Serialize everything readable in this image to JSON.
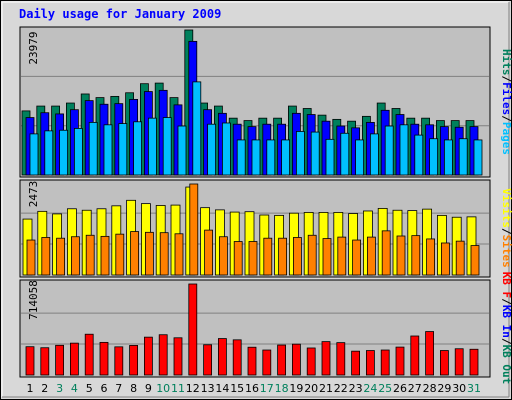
{
  "title": "Daily usage for January 2009",
  "colors": {
    "hits": "#00805c",
    "files": "#0000ff",
    "pages": "#00c0ff",
    "visits": "#ffff00",
    "sites": "#ff8000",
    "kbytes": "#ff0000",
    "kb_in": "#0000ff",
    "kb_out": "#00805c",
    "weekend_day": "#00805c",
    "weekday": "#000000",
    "title_text": "#0000ff",
    "panel_bg": "#c0c0c0",
    "background": "#d8d8d8"
  },
  "chart_data": [
    {
      "type": "bar",
      "panel": "hits-files-pages",
      "y_max_label": "23979",
      "ylim": [
        0,
        23979
      ],
      "legend": [
        {
          "label": "Hits",
          "color": "#00805c"
        },
        {
          "label": "/",
          "color": "#000000"
        },
        {
          "label": "Files",
          "color": "#0000ff"
        },
        {
          "label": "/",
          "color": "#000000"
        },
        {
          "label": "Pages",
          "color": "#00c0ff"
        }
      ],
      "categories": [
        "1",
        "2",
        "3",
        "4",
        "5",
        "6",
        "7",
        "8",
        "9",
        "10",
        "11",
        "12",
        "13",
        "14",
        "15",
        "16",
        "17",
        "18",
        "19",
        "20",
        "21",
        "22",
        "23",
        "24",
        "25",
        "26",
        "27",
        "28",
        "29",
        "30",
        "31"
      ],
      "series": [
        {
          "name": "Hits",
          "values": [
            10600,
            11400,
            11400,
            11900,
            13400,
            12800,
            13000,
            13600,
            15100,
            15200,
            12800,
            23979,
            11900,
            11400,
            9400,
            9000,
            9400,
            9400,
            11400,
            11000,
            9900,
            9200,
            8900,
            9700,
            11900,
            11000,
            9400,
            9400,
            9000,
            9000,
            9000
          ]
        },
        {
          "name": "Files",
          "values": [
            9500,
            10300,
            10100,
            10800,
            12300,
            11700,
            11800,
            12500,
            13800,
            14000,
            11600,
            22100,
            10800,
            10200,
            8400,
            8000,
            8400,
            8400,
            10200,
            10000,
            8900,
            8100,
            7800,
            8700,
            10700,
            10000,
            8400,
            8300,
            8000,
            7900,
            8000
          ]
        },
        {
          "name": "Pages",
          "values": [
            6800,
            7300,
            7400,
            7700,
            8700,
            8300,
            8500,
            8800,
            9400,
            9500,
            8100,
            15400,
            8400,
            8600,
            5800,
            5800,
            5800,
            5800,
            7200,
            7100,
            5900,
            6900,
            5800,
            6800,
            8100,
            8300,
            6600,
            6000,
            5800,
            6000,
            5800
          ]
        }
      ]
    },
    {
      "type": "bar",
      "panel": "visits-sites",
      "y_max_label": "2473",
      "ylim": [
        0,
        2473
      ],
      "legend": [
        {
          "label": "Visits",
          "color": "#ffff00"
        },
        {
          "label": "/",
          "color": "#000000"
        },
        {
          "label": "Sites",
          "color": "#ff8000"
        }
      ],
      "categories": [
        "1",
        "2",
        "3",
        "4",
        "5",
        "6",
        "7",
        "8",
        "9",
        "10",
        "11",
        "12",
        "13",
        "14",
        "15",
        "16",
        "17",
        "18",
        "19",
        "20",
        "21",
        "22",
        "23",
        "24",
        "25",
        "26",
        "27",
        "28",
        "29",
        "30",
        "31"
      ],
      "series": [
        {
          "name": "Visits",
          "values": [
            1520,
            1730,
            1660,
            1800,
            1760,
            1800,
            1880,
            2030,
            1940,
            1890,
            1900,
            2390,
            1830,
            1770,
            1710,
            1720,
            1630,
            1620,
            1680,
            1700,
            1700,
            1700,
            1670,
            1740,
            1810,
            1760,
            1750,
            1790,
            1620,
            1570,
            1580
          ]
        },
        {
          "name": "Sites",
          "values": [
            950,
            1020,
            1000,
            1040,
            1080,
            1050,
            1110,
            1180,
            1160,
            1150,
            1120,
            2473,
            1220,
            1040,
            910,
            910,
            1000,
            1000,
            1020,
            1080,
            990,
            1030,
            950,
            1030,
            1200,
            1060,
            1070,
            980,
            870,
            920,
            800
          ]
        }
      ]
    },
    {
      "type": "bar",
      "panel": "kbytes",
      "y_max_label": "714058",
      "ylim": [
        0,
        714058
      ],
      "legend": [
        {
          "label": "KB F",
          "color": "#ff0000"
        },
        {
          "label": "/",
          "color": "#000000"
        },
        {
          "label": "KB In",
          "color": "#0000ff"
        },
        {
          "label": "/",
          "color": "#000000"
        },
        {
          "label": "KB Out",
          "color": "#00805c"
        }
      ],
      "categories": [
        "1",
        "2",
        "3",
        "4",
        "5",
        "6",
        "7",
        "8",
        "9",
        "10",
        "11",
        "12",
        "13",
        "14",
        "15",
        "16",
        "17",
        "18",
        "19",
        "20",
        "21",
        "22",
        "23",
        "24",
        "25",
        "26",
        "27",
        "28",
        "29",
        "30",
        "31"
      ],
      "series": [
        {
          "name": "KB F",
          "values": [
            222000,
            214000,
            233000,
            250000,
            320000,
            256000,
            221000,
            232000,
            297000,
            316000,
            292000,
            714058,
            237000,
            286000,
            276000,
            218000,
            196000,
            235000,
            242000,
            212000,
            262000,
            254000,
            187000,
            192000,
            196000,
            219000,
            306000,
            341000,
            192000,
            206000,
            202000
          ]
        }
      ]
    }
  ],
  "x_axis_days": [
    {
      "label": "1",
      "weekend": false
    },
    {
      "label": "2",
      "weekend": false
    },
    {
      "label": "3",
      "weekend": true
    },
    {
      "label": "4",
      "weekend": true
    },
    {
      "label": "5",
      "weekend": false
    },
    {
      "label": "6",
      "weekend": false
    },
    {
      "label": "7",
      "weekend": false
    },
    {
      "label": "8",
      "weekend": false
    },
    {
      "label": "9",
      "weekend": false
    },
    {
      "label": "10",
      "weekend": true
    },
    {
      "label": "11",
      "weekend": true
    },
    {
      "label": "12",
      "weekend": false
    },
    {
      "label": "13",
      "weekend": false
    },
    {
      "label": "14",
      "weekend": false
    },
    {
      "label": "15",
      "weekend": false
    },
    {
      "label": "16",
      "weekend": false
    },
    {
      "label": "17",
      "weekend": true
    },
    {
      "label": "18",
      "weekend": true
    },
    {
      "label": "19",
      "weekend": false
    },
    {
      "label": "20",
      "weekend": false
    },
    {
      "label": "21",
      "weekend": false
    },
    {
      "label": "22",
      "weekend": false
    },
    {
      "label": "23",
      "weekend": false
    },
    {
      "label": "24",
      "weekend": true
    },
    {
      "label": "25",
      "weekend": true
    },
    {
      "label": "26",
      "weekend": false
    },
    {
      "label": "27",
      "weekend": false
    },
    {
      "label": "28",
      "weekend": false
    },
    {
      "label": "29",
      "weekend": false
    },
    {
      "label": "30",
      "weekend": false
    },
    {
      "label": "31",
      "weekend": true
    }
  ]
}
